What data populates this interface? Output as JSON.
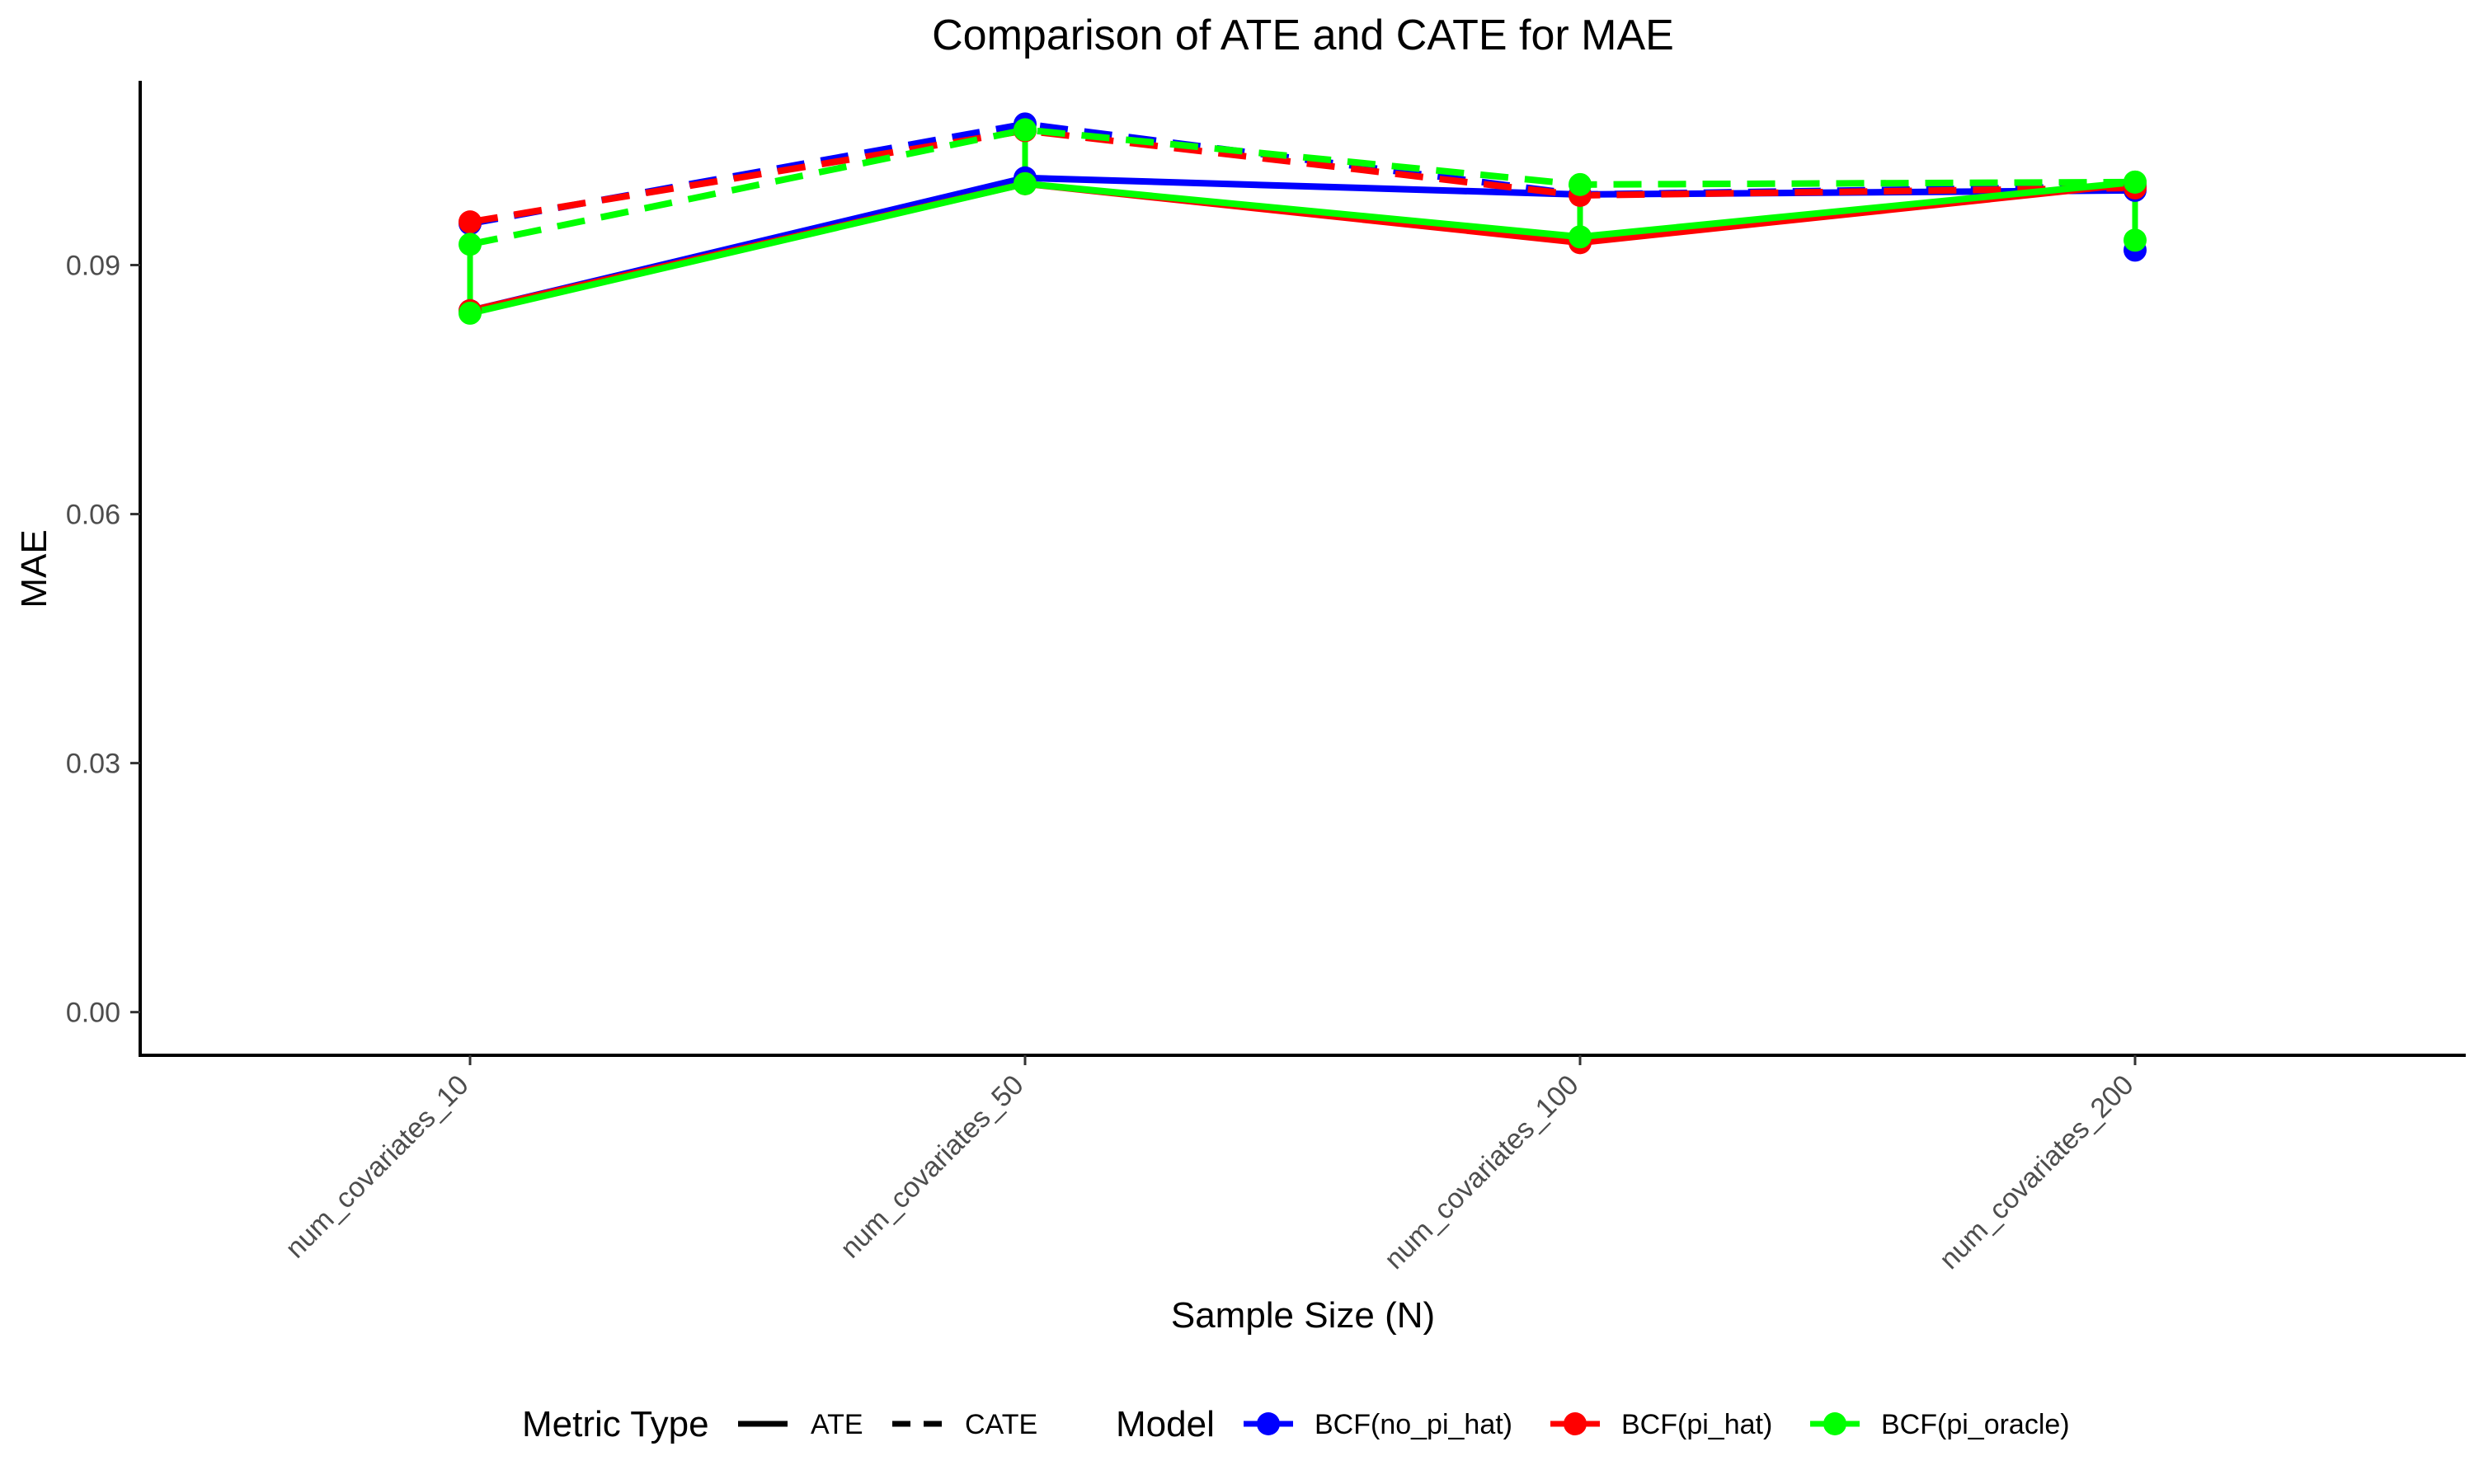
{
  "chart_data": {
    "type": "line",
    "title": "Comparison of ATE and CATE for MAE",
    "xlabel": "Sample Size (N)",
    "ylabel": "MAE",
    "categories": [
      "num_covariates_10",
      "num_covariates_50",
      "num_covariates_100",
      "num_covariates_200"
    ],
    "ylim": [
      -0.0052,
      0.1122
    ],
    "yticks": [
      0.0,
      0.03,
      0.06,
      0.09
    ],
    "ytick_labels": [
      "0.00",
      "0.03",
      "0.06",
      "0.09"
    ],
    "grid": false,
    "legend_position": "bottom",
    "metric_types": [
      {
        "name": "ATE",
        "dash": "solid"
      },
      {
        "name": "CATE",
        "dash": "dashed"
      }
    ],
    "models": [
      {
        "name": "BCF(no_pi_hat)",
        "color": "#0000ff"
      },
      {
        "name": "BCF(pi_hat)",
        "color": "#ff0000"
      },
      {
        "name": "BCF(pi_oracle)",
        "color": "#00ff00"
      }
    ],
    "series": [
      {
        "model": "BCF(no_pi_hat)",
        "metric": "ATE",
        "values": [
          0.0845,
          0.1005,
          0.0985,
          0.099
        ]
      },
      {
        "model": "BCF(no_pi_hat)",
        "metric": "CATE",
        "values": [
          0.095,
          0.107,
          0.0985,
          0.0995
        ]
      },
      {
        "model": "BCF(pi_hat)",
        "metric": "ATE",
        "values": [
          0.0845,
          0.0998,
          0.0927,
          0.0998
        ]
      },
      {
        "model": "BCF(pi_hat)",
        "metric": "CATE",
        "values": [
          0.0952,
          0.1062,
          0.0984,
          0.0993
        ]
      },
      {
        "model": "BCF(pi_oracle)",
        "metric": "ATE",
        "values": [
          0.0842,
          0.0998,
          0.0934,
          0.1
        ]
      },
      {
        "model": "BCF(pi_oracle)",
        "metric": "CATE",
        "values": [
          0.0925,
          0.1063,
          0.0997,
          0.1
        ]
      }
    ],
    "connectors": [
      {
        "model": "BCF(no_pi_hat)",
        "points": [
          [
            3,
            0.099,
            0.0918
          ]
        ]
      },
      {
        "model": "BCF(pi_hat)",
        "points": [
          [
            2,
            0.0984,
            0.0927
          ]
        ]
      },
      {
        "model": "BCF(pi_oracle)",
        "points": [
          [
            0,
            0.0925,
            0.0842
          ],
          [
            1,
            0.1063,
            0.0998
          ],
          [
            2,
            0.0997,
            0.0934
          ],
          [
            3,
            0.1,
            0.093
          ]
        ]
      }
    ],
    "extra_points": [
      {
        "model": "BCF(no_pi_hat)",
        "x": 3,
        "y": 0.0918
      },
      {
        "model": "BCF(pi_oracle)",
        "x": 3,
        "y": 0.093
      }
    ],
    "legend": {
      "metric_title": "Metric Type",
      "model_title": "Model"
    }
  }
}
